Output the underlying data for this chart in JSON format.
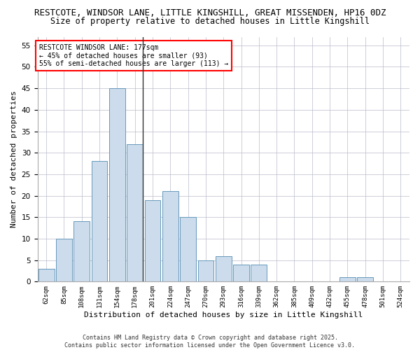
{
  "title1": "RESTCOTE, WINDSOR LANE, LITTLE KINGSHILL, GREAT MISSENDEN, HP16 0DZ",
  "title2": "Size of property relative to detached houses in Little Kingshill",
  "xlabel": "Distribution of detached houses by size in Little Kingshill",
  "ylabel": "Number of detached properties",
  "categories": [
    "62sqm",
    "85sqm",
    "108sqm",
    "131sqm",
    "154sqm",
    "178sqm",
    "201sqm",
    "224sqm",
    "247sqm",
    "270sqm",
    "293sqm",
    "316sqm",
    "339sqm",
    "362sqm",
    "385sqm",
    "409sqm",
    "432sqm",
    "455sqm",
    "478sqm",
    "501sqm",
    "524sqm"
  ],
  "values": [
    3,
    10,
    14,
    28,
    45,
    32,
    19,
    21,
    15,
    5,
    6,
    4,
    4,
    0,
    0,
    0,
    0,
    1,
    1,
    0,
    0
  ],
  "bar_color": "#ccdcec",
  "bar_edge_color": "#6699bb",
  "vline_index": 5,
  "vline_color": "#333333",
  "annotation_text": "RESTCOTE WINDSOR LANE: 177sqm\n← 45% of detached houses are smaller (93)\n55% of semi-detached houses are larger (113) →",
  "annotation_box_color": "white",
  "annotation_box_edge_color": "red",
  "ylim": [
    0,
    57
  ],
  "yticks": [
    0,
    5,
    10,
    15,
    20,
    25,
    30,
    35,
    40,
    45,
    50,
    55
  ],
  "footer1": "Contains HM Land Registry data © Crown copyright and database right 2025.",
  "footer2": "Contains public sector information licensed under the Open Government Licence v3.0.",
  "bg_color": "#ffffff",
  "plot_bg_color": "#ffffff",
  "grid_color": "#bbbbcc",
  "title_fontsize": 9,
  "subtitle_fontsize": 8.5,
  "tick_fontsize": 6.5,
  "ylabel_fontsize": 8,
  "xlabel_fontsize": 8,
  "annotation_fontsize": 7,
  "footer_fontsize": 6
}
